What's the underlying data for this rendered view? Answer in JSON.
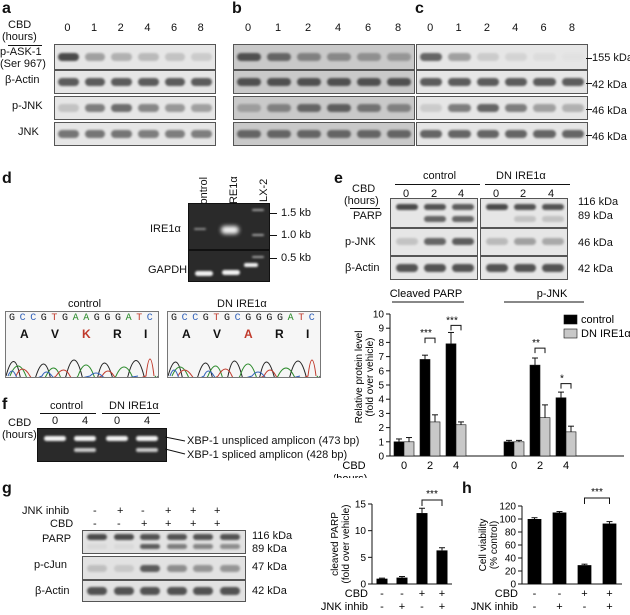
{
  "panels": {
    "a": "a",
    "b": "b",
    "c": "c",
    "d": "d",
    "e": "e",
    "f": "f",
    "g": "g",
    "h": "h"
  },
  "abc": {
    "cbd_label": "CBD",
    "hours_label": "(hours)",
    "timepoints": [
      "0",
      "1",
      "2",
      "4",
      "6",
      "8"
    ],
    "rows": [
      "p-ASK-1\n(Ser 967)",
      "β-Actin",
      "p-JNK",
      "JNK"
    ],
    "row_labels": [
      "p-ASK-1",
      "(Ser 967)",
      "β-Actin",
      "p-JNK",
      "JNK"
    ],
    "mw": [
      "155 kDa",
      "42 kDa",
      "46 kDa",
      "46 kDa"
    ]
  },
  "d": {
    "lanes": [
      "control",
      "DNIRE1α",
      "LX-2"
    ],
    "rows": [
      "IRE1α",
      "GAPDH"
    ],
    "markers": [
      "1.5 kb",
      "1.0 kb",
      "0.5 kb"
    ],
    "seq_titles": [
      "control",
      "DN IRE1α"
    ],
    "nt_control": [
      "G",
      "C",
      "C",
      "G",
      "T",
      "G",
      "A",
      "A",
      "G",
      "G",
      "G",
      "A",
      "T",
      "C"
    ],
    "nt_dn": [
      "G",
      "C",
      "C",
      "G",
      "T",
      "G",
      "C",
      "G",
      "G",
      "G",
      "G",
      "A",
      "T",
      "C"
    ],
    "aa_control": [
      "A",
      "V",
      "K",
      "R",
      "I"
    ],
    "aa_dn": [
      "A",
      "V",
      "A",
      "R",
      "I"
    ]
  },
  "e": {
    "groups": [
      "control",
      "DN IRE1α"
    ],
    "cbd_label": "CBD",
    "hours_label": "(hours)",
    "timepoints": [
      "0",
      "2",
      "4",
      "0",
      "2",
      "4"
    ],
    "rows": [
      "PARP",
      "p-JNK",
      "β-Actin"
    ],
    "mw": [
      "116 kDa",
      "89 kDa",
      "46 kDa",
      "42 kDa"
    ]
  },
  "f": {
    "groups": [
      "control",
      "DN IRE1α"
    ],
    "cbd_label": "CBD",
    "hours_label": "(hours)",
    "timepoints": [
      "0",
      "4",
      "0",
      "4"
    ],
    "bands": [
      "XBP-1 unspliced amplicon (473 bp)",
      "XBP-1 spliced amplicon (428 bp)"
    ]
  },
  "g": {
    "cond_labels": [
      "JNK inhib",
      "CBD"
    ],
    "jnk_row": [
      "-",
      "+",
      "-",
      "+",
      "+",
      "+"
    ],
    "cbd_row": [
      "-",
      "-",
      "+",
      "+",
      "+",
      "+"
    ],
    "rows": [
      "PARP",
      "p-cJun",
      "β-Actin"
    ],
    "mw": [
      "116 kDa",
      "89 kDa",
      "47 kDa",
      "42 kDa"
    ]
  },
  "chart_data": [
    {
      "type": "bar",
      "title": "",
      "ylabel": "Relative protein level (fold over vehicle)",
      "ylim": [
        0,
        10
      ],
      "yticks": [
        0,
        1,
        2,
        3,
        4,
        5,
        6,
        7,
        8,
        9,
        10
      ],
      "group_titles": [
        "Cleaved PARP",
        "p-JNK"
      ],
      "x_title": "CBD",
      "x_unit": "(hours)",
      "categories": [
        "0",
        "2",
        "4",
        "0",
        "2",
        "4"
      ],
      "legend": "top-right",
      "series": [
        {
          "name": "control",
          "color": "#000000",
          "values": [
            1.0,
            6.8,
            7.9,
            1.0,
            6.4,
            4.1
          ],
          "errors": [
            0.2,
            0.3,
            0.8,
            0.1,
            0.5,
            0.4
          ]
        },
        {
          "name": "DN IRE1α",
          "color": "#c8c8c8",
          "values": [
            1.0,
            2.4,
            2.2,
            1.0,
            2.7,
            1.7
          ],
          "errors": [
            0.3,
            0.5,
            0.2,
            0.1,
            0.9,
            0.4
          ]
        }
      ],
      "significance": [
        "***",
        "***",
        "**",
        "*"
      ]
    },
    {
      "type": "bar",
      "title": "",
      "ylabel": "cleaved PARP (fold over vehicle)",
      "ylim": [
        0,
        15
      ],
      "yticks": [
        0,
        5,
        10,
        15
      ],
      "cond_labels": [
        "CBD",
        "JNK inhib"
      ],
      "cbd_row": [
        "-",
        "-",
        "+",
        "+"
      ],
      "jnk_row": [
        "-",
        "+",
        "-",
        "+"
      ],
      "values": [
        1.0,
        1.2,
        13.3,
        6.3
      ],
      "errors": [
        0.1,
        0.2,
        0.9,
        0.5
      ],
      "color": "#000000",
      "significance": [
        "***"
      ]
    },
    {
      "type": "bar",
      "title": "",
      "ylabel": "Cell viability (% control)",
      "ylim": [
        0,
        120
      ],
      "yticks": [
        0,
        20,
        40,
        60,
        80,
        100,
        120
      ],
      "cond_labels": [
        "CBD",
        "JNK inhib"
      ],
      "cbd_row": [
        "-",
        "-",
        "+",
        "+"
      ],
      "jnk_row": [
        "-",
        "+",
        "-",
        "+"
      ],
      "values": [
        100,
        110,
        29,
        93
      ],
      "errors": [
        2,
        1.5,
        1.5,
        3
      ],
      "color": "#000000",
      "significance": [
        "***"
      ]
    }
  ]
}
